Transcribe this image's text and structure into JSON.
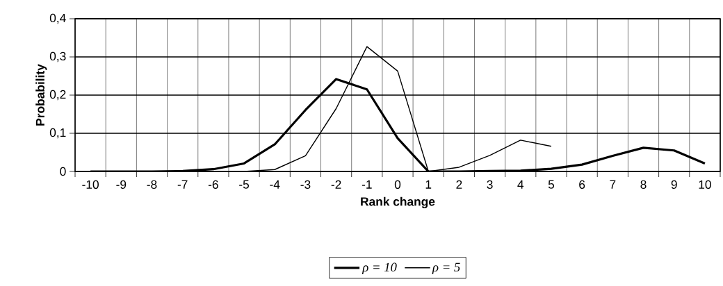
{
  "chart_data": {
    "type": "line",
    "xlabel": "Rank change",
    "ylabel": "Probability",
    "categories": [
      "-10",
      "-9",
      "-8",
      "-7",
      "-6",
      "-5",
      "-4",
      "-3",
      "-2",
      "-1",
      "0",
      "1",
      "2",
      "3",
      "4",
      "5",
      "6",
      "7",
      "8",
      "9",
      "10"
    ],
    "ylim": [
      0,
      0.4
    ],
    "yticks": [
      0,
      {
        "value": 0.1,
        "label": "0,1"
      },
      {
        "value": 0.2,
        "label": "0,2"
      },
      {
        "value": 0.3,
        "label": "0,3"
      },
      {
        "value": 0.4,
        "label": "0,4"
      }
    ],
    "grid": true,
    "legend": "bottom",
    "marker": "none",
    "line_style": "solid",
    "series": [
      {
        "name": "*ρ = 10*",
        "color": "#000000",
        "values": [
          0,
          0,
          0,
          0.001,
          0.006,
          0.021,
          0.071,
          0.161,
          0.242,
          0.215,
          0.087,
          0,
          0,
          0.001,
          0.002,
          0.007,
          0.018,
          0.041,
          0.062,
          0.055,
          0.021
        ]
      },
      {
        "name": "*ρ = 5*",
        "color": "#000000",
        "values": [
          0,
          0,
          0,
          0,
          0,
          0,
          0.005,
          0.041,
          0.165,
          0.327,
          0.263,
          0,
          0.011,
          0.042,
          0.082,
          0.066,
          null,
          null,
          null,
          null,
          null
        ]
      }
    ]
  }
}
